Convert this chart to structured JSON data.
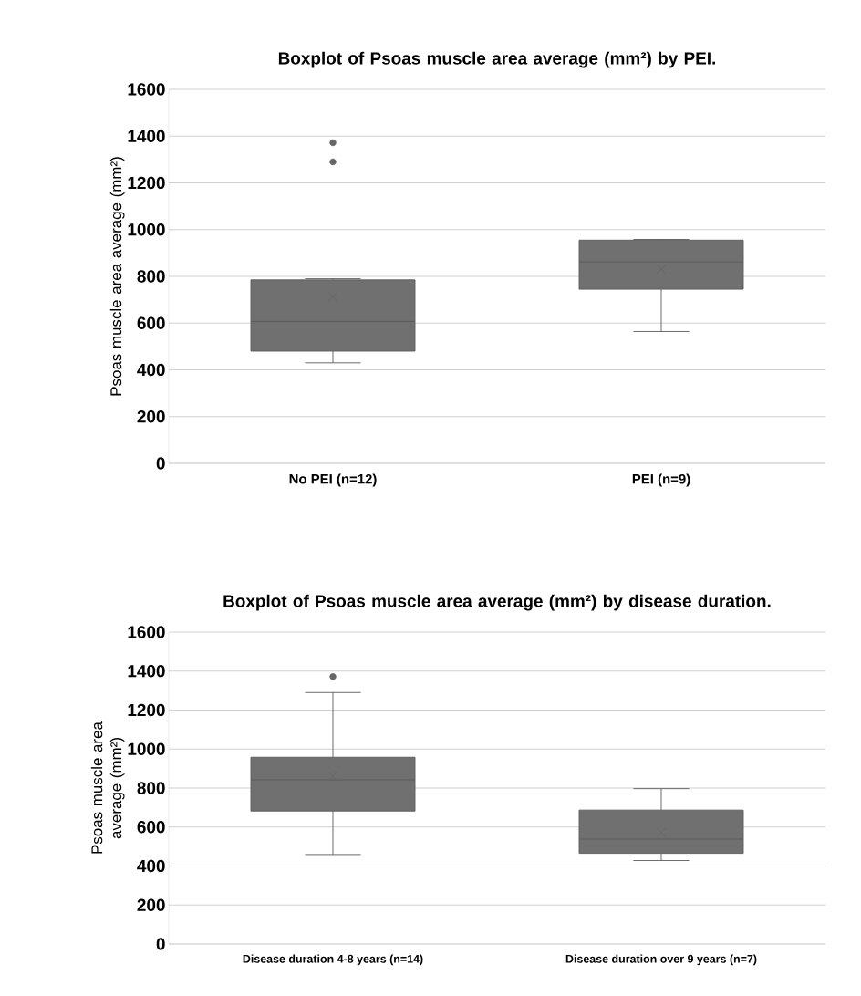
{
  "chart_data": [
    {
      "type": "box",
      "title": "Boxplot of Psoas muscle area average  (mm²) by PEI.",
      "ylabel": "Psoas muscle area average (mm²)",
      "categories": [
        "No PEI (n=12)",
        "PEI (n=9)"
      ],
      "color": "#707070",
      "boxes": [
        {
          "low": 430,
          "q1": 480,
          "median": 607,
          "q3": 785,
          "high": 790,
          "mean": 712,
          "outliers": [
            1372,
            1290
          ]
        },
        {
          "low": 564,
          "q1": 745,
          "median": 862,
          "q3": 955,
          "high": 958,
          "mean": 831
        }
      ],
      "ylim": [
        0,
        1600
      ],
      "yticks": [
        0,
        200,
        400,
        600,
        800,
        1000,
        1200,
        1400,
        1600
      ],
      "grid": "y"
    },
    {
      "type": "box",
      "title": "Boxplot of Psoas muscle area average  (mm²) by disease duration.",
      "ylabel": "Psoas muscle area average  (mm²)",
      "categories": [
        "Disease duration 4-8 years (n=14)",
        "Disease duration over 9 years (n=7)"
      ],
      "color": "#707070",
      "boxes": [
        {
          "low": 459,
          "q1": 682,
          "median": 842,
          "q3": 958,
          "high": 1290,
          "mean": 859,
          "outliers": [
            1372
          ]
        },
        {
          "low": 428,
          "q1": 465,
          "median": 538,
          "q3": 687,
          "high": 797,
          "mean": 572
        }
      ],
      "ylim": [
        0,
        1600
      ],
      "yticks": [
        0,
        200,
        400,
        600,
        800,
        1000,
        1200,
        1400,
        1600
      ],
      "grid": "y"
    }
  ]
}
